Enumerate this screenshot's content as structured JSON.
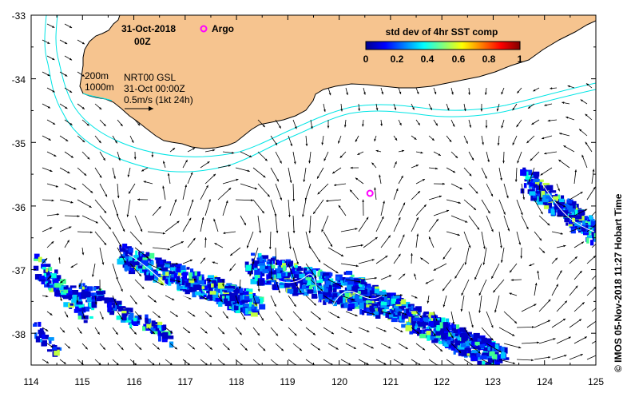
{
  "map": {
    "date_title": "31-Oct-2018",
    "hour_title": "00Z",
    "argo_label": "Argo",
    "contour_200": "200m",
    "contour_1000": "1000m",
    "product": "NRT00 GSL",
    "timestamp": "31-Oct 00:00Z",
    "speed_scale": "0.5m/s (1kt 24h)",
    "credit": "©  IMOS 05-Nov-2018 11:27 Hobart Time",
    "lon_ticks": [
      "114",
      "115",
      "116",
      "117",
      "118",
      "119",
      "120",
      "121",
      "122",
      "123",
      "124",
      "125"
    ],
    "lat_ticks": [
      "-33",
      "-34",
      "-35",
      "-36",
      "-37",
      "-38"
    ],
    "land_color": "#f6c48f",
    "isobath_color": "#00e5e5",
    "argo_color": "#ff00ff"
  },
  "colorbar": {
    "title": "std dev of 4hr SST comp",
    "tick_labels": [
      "0",
      "0.2",
      "0.4",
      "0.6",
      "0.8",
      "1"
    ]
  },
  "argo_float": {
    "lon": 120.6,
    "lat": -35.8
  }
}
